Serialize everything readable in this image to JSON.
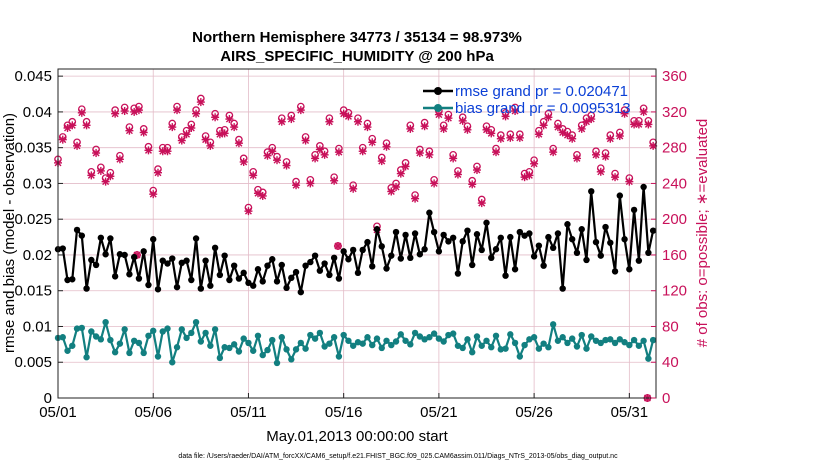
{
  "chart_data": {
    "type": "line",
    "title": "Northern Hemisphere 34773 / 35134 = 98.973%",
    "subtitle": "AIRS_SPECIFIC_HUMIDITY @ 200 hPa",
    "xlabel": "May.01,2013 00:00:00 start",
    "ylabel": "rmse and bias (model - observation)",
    "y2label": "# of obs: o=possible; ∗=evaluated",
    "footnote": "data file: /Users/raeder/DAI/ATM_forcXX/CAM6_setup/f.e21.FHIST_BGC.f09_025.CAM6assim.011/Diags_NTrS_2013-05/obs_diag_output.nc",
    "xlim": [
      0,
      31.4
    ],
    "ylim": [
      0,
      0.046
    ],
    "y2lim": [
      0,
      368
    ],
    "x_ticks": [
      {
        "value": 0,
        "label": "05/01"
      },
      {
        "value": 5,
        "label": "05/06"
      },
      {
        "value": 10,
        "label": "05/11"
      },
      {
        "value": 15,
        "label": "05/16"
      },
      {
        "value": 20,
        "label": "05/21"
      },
      {
        "value": 25,
        "label": "05/26"
      },
      {
        "value": 30,
        "label": "05/31"
      }
    ],
    "y_ticks": [
      {
        "value": 0,
        "label": "0"
      },
      {
        "value": 0.005,
        "label": "0.005"
      },
      {
        "value": 0.01,
        "label": "0.01"
      },
      {
        "value": 0.015,
        "label": "0.015"
      },
      {
        "value": 0.02,
        "label": "0.02"
      },
      {
        "value": 0.025,
        "label": "0.025"
      },
      {
        "value": 0.03,
        "label": "0.03"
      },
      {
        "value": 0.035,
        "label": "0.035"
      },
      {
        "value": 0.04,
        "label": "0.04"
      },
      {
        "value": 0.045,
        "label": "0.045"
      }
    ],
    "y2_ticks": [
      {
        "value": 0,
        "label": "0"
      },
      {
        "value": 40,
        "label": "40"
      },
      {
        "value": 80,
        "label": "80"
      },
      {
        "value": 120,
        "label": "120"
      },
      {
        "value": 160,
        "label": "160"
      },
      {
        "value": 200,
        "label": "200"
      },
      {
        "value": 240,
        "label": "240"
      },
      {
        "value": 280,
        "label": "280"
      },
      {
        "value": 320,
        "label": "320"
      },
      {
        "value": 360,
        "label": "360"
      }
    ],
    "grid": true,
    "legend_position": "top-right",
    "x": [
      0.0,
      0.25,
      0.5,
      0.75,
      1.0,
      1.25,
      1.5,
      1.75,
      2.0,
      2.25,
      2.5,
      2.75,
      3.0,
      3.25,
      3.5,
      3.75,
      4.0,
      4.25,
      4.5,
      4.75,
      5.0,
      5.25,
      5.5,
      5.75,
      6.0,
      6.25,
      6.5,
      6.75,
      7.0,
      7.25,
      7.5,
      7.75,
      8.0,
      8.25,
      8.5,
      8.75,
      9.0,
      9.25,
      9.5,
      9.75,
      10.0,
      10.25,
      10.5,
      10.75,
      11.0,
      11.25,
      11.5,
      11.75,
      12.0,
      12.25,
      12.5,
      12.75,
      13.0,
      13.25,
      13.5,
      13.75,
      14.0,
      14.25,
      14.5,
      14.75,
      15.0,
      15.25,
      15.5,
      15.75,
      16.0,
      16.25,
      16.5,
      16.75,
      17.0,
      17.25,
      17.5,
      17.75,
      18.0,
      18.25,
      18.5,
      18.75,
      19.0,
      19.25,
      19.5,
      19.75,
      20.0,
      20.25,
      20.5,
      20.75,
      21.0,
      21.25,
      21.5,
      21.75,
      22.0,
      22.25,
      22.5,
      22.75,
      23.0,
      23.25,
      23.5,
      23.75,
      24.0,
      24.25,
      24.5,
      24.75,
      25.0,
      25.25,
      25.5,
      25.75,
      26.0,
      26.25,
      26.5,
      26.75,
      27.0,
      27.25,
      27.5,
      27.75,
      28.0,
      28.25,
      28.5,
      28.75,
      29.0,
      29.25,
      29.5,
      29.75,
      30.0,
      30.25,
      30.5,
      30.75,
      31.0,
      31.25
    ],
    "series": [
      {
        "name": "rmse grand pr = 0.020471",
        "color": "#000000",
        "marker": "circle",
        "values": [
          0.0208,
          0.0209,
          0.0165,
          0.0166,
          0.0235,
          0.0227,
          0.0153,
          0.0193,
          0.0186,
          0.0224,
          0.0201,
          0.0223,
          0.017,
          0.0201,
          0.02,
          0.0173,
          0.0197,
          0.0167,
          0.0205,
          0.0158,
          0.0222,
          0.0152,
          0.0192,
          0.0188,
          0.0195,
          0.0155,
          0.0189,
          0.0192,
          0.0165,
          0.0223,
          0.0153,
          0.0192,
          0.0157,
          0.021,
          0.0172,
          0.0199,
          0.0165,
          0.0185,
          0.0167,
          0.0175,
          0.0161,
          0.0157,
          0.018,
          0.0163,
          0.0185,
          0.0194,
          0.0163,
          0.0186,
          0.0154,
          0.0168,
          0.0176,
          0.0148,
          0.0185,
          0.019,
          0.0199,
          0.0178,
          0.0188,
          0.0172,
          0.0196,
          0.0167,
          0.0205,
          0.0194,
          0.0207,
          0.0175,
          0.0207,
          0.0218,
          0.0184,
          0.0236,
          0.0212,
          0.0181,
          0.0199,
          0.0232,
          0.0195,
          0.0228,
          0.0196,
          0.023,
          0.0201,
          0.0208,
          0.0259,
          0.0232,
          0.0205,
          0.0228,
          0.0219,
          0.0224,
          0.0174,
          0.0219,
          0.0234,
          0.0186,
          0.0229,
          0.0207,
          0.0245,
          0.0196,
          0.0208,
          0.0224,
          0.0171,
          0.0225,
          0.018,
          0.0232,
          0.0227,
          0.023,
          0.0198,
          0.0213,
          0.0185,
          0.0225,
          0.021,
          0.023,
          0.0153,
          0.0243,
          0.0222,
          0.0203,
          0.0236,
          0.0193,
          0.0289,
          0.0218,
          0.0199,
          0.0239,
          0.0217,
          0.0177,
          0.0283,
          0.0222,
          0.018,
          0.0263,
          0.0192,
          0.0295,
          0.0203,
          0.0234
        ],
        "evaluated_obs": [
          263,
          289,
          302,
          305,
          282,
          319,
          305,
          249,
          274,
          254,
          242,
          248,
          318,
          267,
          321,
          299,
          320,
          322,
          297,
          277,
          228,
          252,
          276,
          276,
          303,
          322,
          288,
          295,
          302,
          318,
          331,
          289,
          282,
          314,
          295,
          296,
          312,
          303,
          285,
          264,
          209,
          249,
          229,
          226,
          271,
          276,
          266,
          309,
          260,
          312,
          238,
          322,
          288,
          240,
          268,
          278,
          272,
          309,
          243,
          275,
          318,
          315,
          234,
          309,
          276,
          303,
          286,
          188,
          265,
          281,
          231,
          236,
          251,
          259,
          301,
          223,
          274,
          304,
          272,
          240,
          317,
          301,
          313,
          268,
          250,
          310,
          300,
          239,
          255,
          218,
          300,
          296,
          275,
          290,
          315,
          291,
          321,
          291,
          247,
          249,
          262,
          295,
          305,
          314,
          275,
          303,
          297,
          294,
          290,
          268,
          301,
          309,
          312,
          272,
          253,
          270,
          290,
          247,
          293,
          318,
          242,
          306,
          306,
          320,
          306,
          282,
          296
        ]
      },
      {
        "name": "bias grand pr = 0.0095313",
        "color": "#127f80",
        "marker": "circle",
        "values": [
          0.0084,
          0.0085,
          0.0066,
          0.0073,
          0.0097,
          0.0098,
          0.0057,
          0.0093,
          0.0086,
          0.0082,
          0.0106,
          0.0081,
          0.0064,
          0.0076,
          0.0096,
          0.0063,
          0.008,
          0.0077,
          0.0063,
          0.0087,
          0.0094,
          0.0058,
          0.0093,
          0.0097,
          0.005,
          0.0071,
          0.0096,
          0.0084,
          0.0091,
          0.0106,
          0.0079,
          0.0091,
          0.0073,
          0.0096,
          0.0056,
          0.0071,
          0.007,
          0.0075,
          0.0065,
          0.0083,
          0.0077,
          0.0066,
          0.0087,
          0.006,
          0.0067,
          0.0081,
          0.0049,
          0.0085,
          0.0068,
          0.0054,
          0.0068,
          0.0077,
          0.0069,
          0.0088,
          0.0083,
          0.0091,
          0.0072,
          0.0076,
          0.0085,
          0.0058,
          0.0088,
          0.008,
          0.0073,
          0.0078,
          0.0076,
          0.0085,
          0.0074,
          0.0083,
          0.007,
          0.008,
          0.0074,
          0.0079,
          0.0089,
          0.008,
          0.0075,
          0.0091,
          0.0086,
          0.0082,
          0.0085,
          0.009,
          0.0083,
          0.0079,
          0.0088,
          0.009,
          0.0073,
          0.007,
          0.0082,
          0.0064,
          0.0086,
          0.0073,
          0.008,
          0.0071,
          0.0087,
          0.0068,
          0.0069,
          0.0089,
          0.0077,
          0.0058,
          0.0074,
          0.0082,
          0.0085,
          0.0069,
          0.0076,
          0.0071,
          0.0103,
          0.008,
          0.0085,
          0.0077,
          0.0083,
          0.0072,
          0.0088,
          0.0069,
          0.0086,
          0.008,
          0.0077,
          0.0081,
          0.0082,
          0.0077,
          0.0082,
          0.0078,
          0.0074,
          0.0081,
          0.0073,
          0.008,
          0.0055,
          0.0081
        ],
        "possible_obs": [
          267,
          292,
          305,
          309,
          286,
          323,
          309,
          253,
          278,
          258,
          246,
          252,
          322,
          271,
          325,
          303,
          324,
          326,
          301,
          281,
          232,
          256,
          280,
          280,
          307,
          326,
          292,
          299,
          306,
          322,
          335,
          293,
          286,
          318,
          299,
          300,
          316,
          307,
          289,
          268,
          213,
          253,
          233,
          230,
          275,
          280,
          270,
          313,
          264,
          316,
          242,
          326,
          292,
          244,
          272,
          282,
          276,
          313,
          247,
          279,
          322,
          319,
          238,
          313,
          280,
          307,
          290,
          192,
          269,
          285,
          235,
          240,
          255,
          263,
          305,
          227,
          278,
          308,
          276,
          244,
          321,
          305,
          317,
          272,
          254,
          314,
          304,
          243,
          259,
          222,
          304,
          300,
          279,
          294,
          319,
          295,
          325,
          295,
          251,
          253,
          266,
          299,
          309,
          318,
          279,
          307,
          301,
          298,
          294,
          272,
          305,
          313,
          316,
          276,
          257,
          274,
          294,
          251,
          297,
          322,
          246,
          310,
          310,
          324,
          310,
          286,
          300
        ]
      }
    ],
    "obs_marker_color": "#c8115a",
    "outlier_points": [
      {
        "x": 4.15,
        "y2": 160
      },
      {
        "x": 14.7,
        "y2": 170
      },
      {
        "x": 30.95,
        "y2": 0
      }
    ]
  }
}
